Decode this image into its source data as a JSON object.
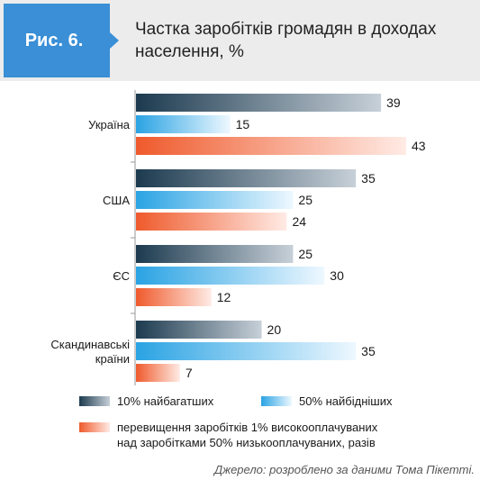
{
  "figure": {
    "badge": "Рис. 6.",
    "title": "Частка заробітків громадян в доходах населення, %"
  },
  "chart_data": {
    "type": "bar",
    "orientation": "horizontal",
    "categories": [
      "Україна",
      "США",
      "ЄС",
      "Скандинавські країни"
    ],
    "category_lines": [
      [
        "Україна"
      ],
      [
        "США"
      ],
      [
        "ЄС"
      ],
      [
        "Скандинавські",
        "країни"
      ]
    ],
    "series": [
      {
        "name": "10% найбагатших",
        "values": [
          39,
          35,
          25,
          20
        ],
        "color_start": "#1c3a4f",
        "color_end": "#c7d0d8"
      },
      {
        "name": "50% найбідніших",
        "values": [
          15,
          25,
          30,
          35
        ],
        "color_start": "#2aa3e3",
        "color_end": "#eef8ff"
      },
      {
        "name": "перевищення заробітків 1% високооплачуваних над заробітками 50% низькооплачуваних, разів",
        "values": [
          43,
          24,
          12,
          7
        ],
        "color_start": "#ef5a2c",
        "color_end": "#ffebe5"
      }
    ],
    "legend_lines_series3": [
      "перевищення заробітків 1% високооплачуваних",
      "над заробітками 50% низькооплачуваних, разів"
    ],
    "legend_position": "bottom",
    "xlim": [
      0,
      43
    ],
    "grid": false
  },
  "source": "Джерело: розроблено за даними Тома Пікетті."
}
